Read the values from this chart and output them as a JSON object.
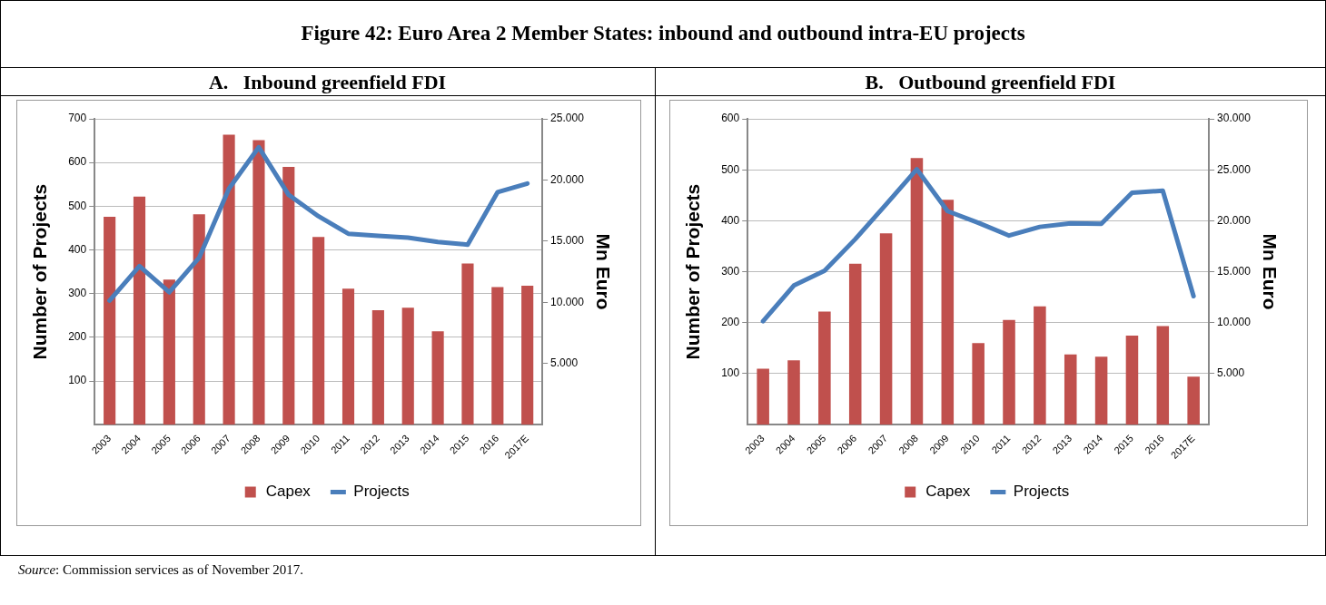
{
  "chart_data": [
    {
      "type": "other",
      "title": "Figure 42: Euro Area 2 Member States: inbound and outbound intra-EU projects",
      "annotations": [
        "Source: Commission services as of November 2017."
      ]
    },
    {
      "type": "bar",
      "title": "A.   Inbound greenfield FDI",
      "categories": [
        "2003",
        "2004",
        "2005",
        "2006",
        "2007",
        "2008",
        "2009",
        "2010",
        "2011",
        "2012",
        "2013",
        "2014",
        "2015",
        "2016",
        "2017E"
      ],
      "ylabel": "Number of Projects",
      "y2label": "Mn Euro",
      "ylim": [
        0,
        700
      ],
      "yticks": [
        100,
        200,
        300,
        400,
        500,
        600,
        700
      ],
      "y2lim": [
        0,
        25000
      ],
      "y2ticks": [
        {
          "value": 5000,
          "label": "5.000"
        },
        {
          "value": 10000,
          "label": "10.000"
        },
        {
          "value": 15000,
          "label": "15.000"
        },
        {
          "value": 20000,
          "label": "20.000"
        },
        {
          "value": 25000,
          "label": "25.000"
        }
      ],
      "grid": "y",
      "legend": "bottom",
      "series": [
        {
          "name": "Capex",
          "type": "bar",
          "axis": "y2",
          "color": "#c0504d",
          "values": [
            17000,
            18650,
            11860,
            17200,
            23700,
            23250,
            21070,
            15350,
            11120,
            9360,
            9550,
            7630,
            13170,
            11250,
            11360
          ]
        },
        {
          "name": "Projects",
          "type": "line",
          "color": "#4a7ebb",
          "values": [
            284,
            363,
            303,
            382,
            540,
            635,
            526,
            477,
            437,
            432,
            428,
            418,
            412,
            532,
            552
          ]
        }
      ]
    },
    {
      "type": "bar",
      "title": "B.   Outbound greenfield FDI",
      "categories": [
        "2003",
        "2004",
        "2005",
        "2006",
        "2007",
        "2008",
        "2009",
        "2010",
        "2011",
        "2012",
        "2013",
        "2014",
        "2015",
        "2016",
        "2017E"
      ],
      "ylabel": "Number of Projects",
      "y2label": "Mn Euro",
      "ylim": [
        0,
        600
      ],
      "yticks": [
        100,
        200,
        300,
        400,
        500,
        600
      ],
      "y2lim": [
        0,
        30000
      ],
      "y2ticks": [
        {
          "value": 5000,
          "label": "5.000"
        },
        {
          "value": 10000,
          "label": "10.000"
        },
        {
          "value": 15000,
          "label": "15.000"
        },
        {
          "value": 20000,
          "label": "20.000"
        },
        {
          "value": 25000,
          "label": "25.000"
        },
        {
          "value": 30000,
          "label": "30.000"
        }
      ],
      "grid": "y",
      "legend": "bottom",
      "series": [
        {
          "name": "Capex",
          "type": "bar",
          "axis": "y2",
          "color": "#c0504d",
          "values": [
            5480,
            6300,
            11090,
            15780,
            18770,
            26150,
            22050,
            8010,
            10270,
            11610,
            6890,
            6660,
            8730,
            9680,
            4720
          ]
        },
        {
          "name": "Projects",
          "type": "line",
          "color": "#4a7ebb",
          "values": [
            203,
            273,
            302,
            364,
            432,
            501,
            419,
            396,
            371,
            388,
            395,
            394,
            455,
            459,
            252
          ]
        }
      ]
    }
  ]
}
